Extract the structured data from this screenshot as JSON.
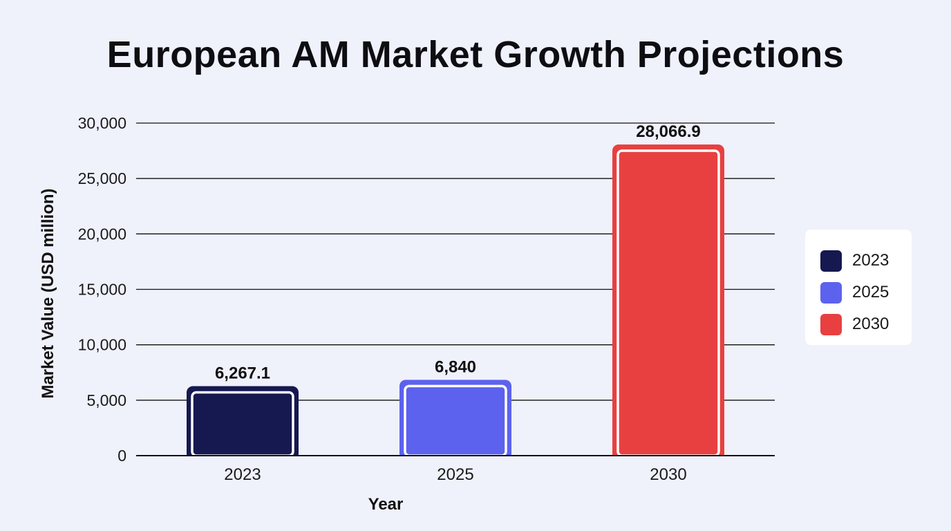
{
  "chart_data": {
    "type": "bar",
    "title": "European AM Market Growth Projections",
    "xlabel": "Year",
    "ylabel": "Market Value (USD million)",
    "categories": [
      "2023",
      "2025",
      "2030"
    ],
    "values": [
      6267.1,
      6840,
      28066.9
    ],
    "value_labels": [
      "6,267.1",
      "6,840",
      "28,066.9"
    ],
    "colors": [
      "#161850",
      "#5c62ee",
      "#e84040"
    ],
    "ylim": [
      0,
      30000
    ],
    "yticks": [
      0,
      5000,
      10000,
      15000,
      20000,
      25000,
      30000
    ],
    "ytick_labels": [
      "0",
      "5,000",
      "10,000",
      "15,000",
      "20,000",
      "25,000",
      "30,000"
    ],
    "grid": "horizontal",
    "legend": {
      "position": "right",
      "items": [
        {
          "label": "2023",
          "color": "#161850"
        },
        {
          "label": "2025",
          "color": "#5c62ee"
        },
        {
          "label": "2030",
          "color": "#e84040"
        }
      ]
    }
  }
}
